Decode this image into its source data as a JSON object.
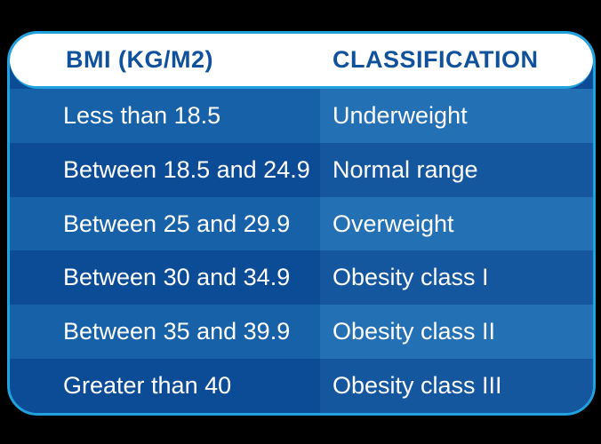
{
  "chart_data": {
    "type": "table",
    "columns": [
      "BMI (KG/M2)",
      "CLASSIFICATION"
    ],
    "rows": [
      {
        "bmi": "Less than 18.5",
        "classification": "Underweight"
      },
      {
        "bmi": "Between 18.5 and 24.9",
        "classification": "Normal range"
      },
      {
        "bmi": "Between 25 and 29.9",
        "classification": "Overweight"
      },
      {
        "bmi": "Between 30 and 34.9",
        "classification": "Obesity class I"
      },
      {
        "bmi": "Between 35 and 39.9",
        "classification": "Obesity class II"
      },
      {
        "bmi": "Greater than 40",
        "classification": "Obesity class III"
      }
    ]
  },
  "colors": {
    "page_bg": "#000000",
    "card_border": "#21A1DE",
    "header_bg": "#FFFFFF",
    "header_text": "#10519C",
    "row_text": "#FFFFFF",
    "odd_row_left": "#1761A9",
    "odd_row_right": "#2470B5",
    "even_row_left": "#0C4C96",
    "even_row_right": "#14579F"
  }
}
